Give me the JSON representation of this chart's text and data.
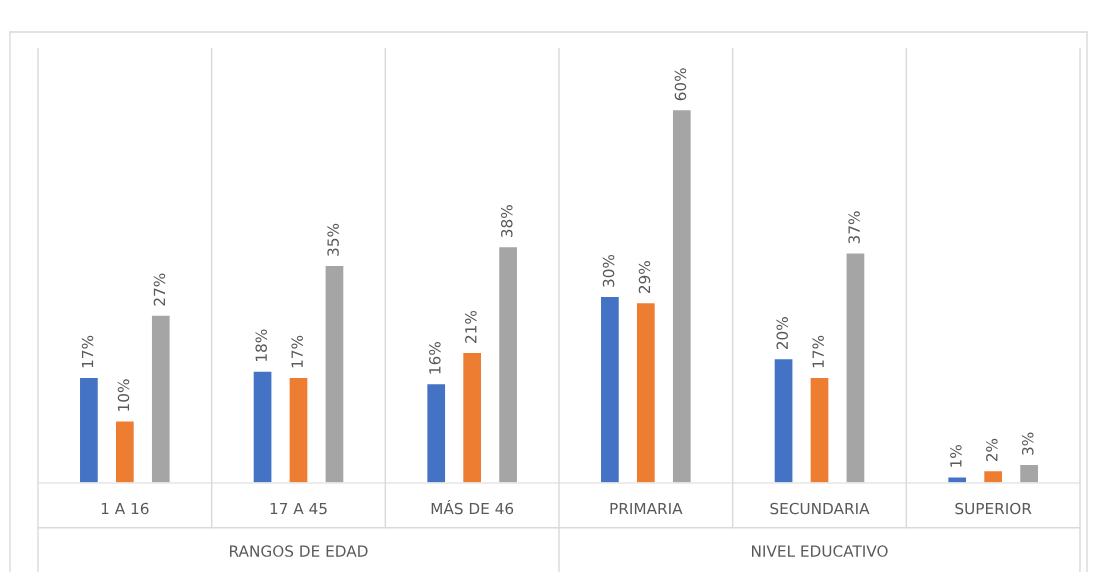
{
  "chart_data": {
    "type": "bar",
    "categories": [
      "1 A 16",
      "17 A 45",
      "MÁS DE 46",
      "PRIMARIA",
      "SECUNDARIA",
      "SUPERIOR"
    ],
    "series": [
      {
        "color": "#4472c4",
        "values": [
          17,
          18,
          16,
          30,
          20,
          1
        ],
        "value_labels": [
          "17%",
          "18%",
          "16%",
          "30%",
          "20%",
          "1%"
        ]
      },
      {
        "color": "#ed7d31",
        "values": [
          10,
          17,
          21,
          29,
          17,
          2
        ],
        "value_labels": [
          "10%",
          "17%",
          "21%",
          "29%",
          "17%",
          "2%"
        ]
      },
      {
        "color": "#a5a5a5",
        "values": [
          27,
          35,
          38,
          60,
          37,
          3
        ],
        "value_labels": [
          "27%",
          "35%",
          "38%",
          "60%",
          "37%",
          "3%"
        ]
      }
    ],
    "ylim": [
      0,
      72
    ],
    "annotations": [
      "RANGOS DE EDAD",
      "NIVEL EDUCATIVO"
    ],
    "legend": false
  }
}
